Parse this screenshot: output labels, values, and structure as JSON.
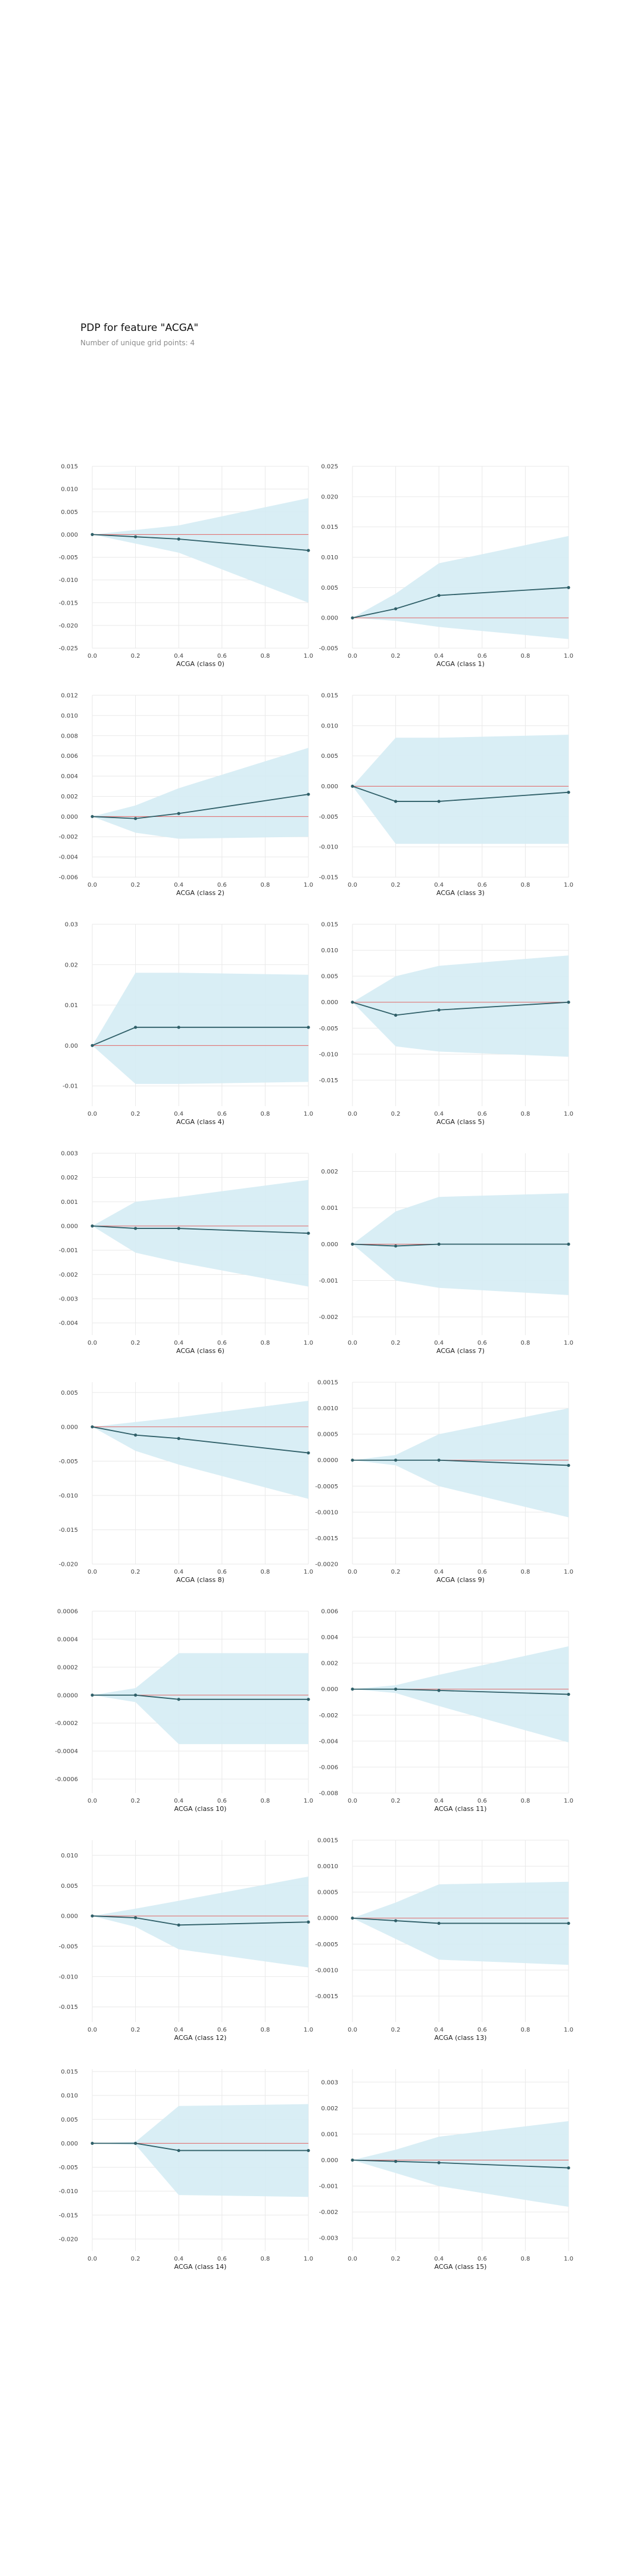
{
  "header": {
    "title": "PDP for feature \"ACGA\"",
    "subtitle": "Number of unique grid points: 4"
  },
  "colors": {
    "band": "#d5ecf4",
    "line": "#2f5f68",
    "baseline": "#e06666",
    "grid": "#e9e9e9",
    "tick_text": "#444444"
  },
  "chart_data": [
    {
      "type": "line",
      "xlabel": "ACGA (class 0)",
      "xlim": [
        0,
        1
      ],
      "ylim": [
        -0.025,
        0.015
      ],
      "xticks": [
        "0.0",
        "0.2",
        "0.4",
        "0.6",
        "0.8",
        "1.0"
      ],
      "yticks": [
        "0.015",
        "0.010",
        "0.005",
        "0.000",
        "-0.005",
        "-0.010",
        "-0.015",
        "-0.020",
        "-0.025"
      ],
      "ytick_values": [
        0.015,
        0.01,
        0.005,
        0.0,
        -0.005,
        -0.01,
        -0.015,
        -0.02,
        -0.025
      ],
      "x": [
        0,
        0.2,
        0.4,
        1.0
      ],
      "y": [
        0,
        -0.0005,
        -0.001,
        -0.0035
      ],
      "upper": [
        0,
        0.001,
        0.002,
        0.008
      ],
      "lower": [
        0,
        -0.002,
        -0.004,
        -0.015
      ]
    },
    {
      "type": "line",
      "xlabel": "ACGA (class 1)",
      "xlim": [
        0,
        1
      ],
      "ylim": [
        -0.005,
        0.025
      ],
      "xticks": [
        "0.0",
        "0.2",
        "0.4",
        "0.6",
        "0.8",
        "1.0"
      ],
      "yticks": [
        "0.025",
        "0.020",
        "0.015",
        "0.010",
        "0.005",
        "0.000",
        "-0.005"
      ],
      "ytick_values": [
        0.025,
        0.02,
        0.015,
        0.01,
        0.005,
        0.0,
        -0.005
      ],
      "x": [
        0,
        0.2,
        0.4,
        1.0
      ],
      "y": [
        0,
        0.0015,
        0.0037,
        0.005
      ],
      "upper": [
        0,
        0.004,
        0.009,
        0.0135
      ],
      "lower": [
        0,
        -0.0005,
        -0.0015,
        -0.0035
      ]
    },
    {
      "type": "line",
      "xlabel": "ACGA (class 2)",
      "xlim": [
        0,
        1
      ],
      "ylim": [
        -0.006,
        0.012
      ],
      "xticks": [
        "0.0",
        "0.2",
        "0.4",
        "0.6",
        "0.8",
        "1.0"
      ],
      "yticks": [
        "0.012",
        "0.010",
        "0.008",
        "0.006",
        "0.004",
        "0.002",
        "0.000",
        "-0.002",
        "-0.004",
        "-0.006"
      ],
      "ytick_values": [
        0.012,
        0.01,
        0.008,
        0.006,
        0.004,
        0.002,
        0.0,
        -0.002,
        -0.004,
        -0.006
      ],
      "x": [
        0,
        0.2,
        0.4,
        1.0
      ],
      "y": [
        0,
        -0.0002,
        0.0003,
        0.0022
      ],
      "upper": [
        0,
        0.0011,
        0.0028,
        0.0068
      ],
      "lower": [
        0,
        -0.0016,
        -0.0022,
        -0.002
      ]
    },
    {
      "type": "line",
      "xlabel": "ACGA (class 3)",
      "xlim": [
        0,
        1
      ],
      "ylim": [
        -0.015,
        0.015
      ],
      "xticks": [
        "0.0",
        "0.2",
        "0.4",
        "0.6",
        "0.8",
        "1.0"
      ],
      "yticks": [
        "0.015",
        "0.010",
        "0.005",
        "0.000",
        "-0.005",
        "-0.010",
        "-0.015"
      ],
      "ytick_values": [
        0.015,
        0.01,
        0.005,
        0.0,
        -0.005,
        -0.01,
        -0.015
      ],
      "x": [
        0,
        0.2,
        0.4,
        1.0
      ],
      "y": [
        0,
        -0.0025,
        -0.0025,
        -0.001
      ],
      "upper": [
        0,
        0.008,
        0.008,
        0.0085
      ],
      "lower": [
        0,
        -0.0095,
        -0.0095,
        -0.0095
      ]
    },
    {
      "type": "line",
      "xlabel": "ACGA (class 4)",
      "xlim": [
        0,
        1
      ],
      "ylim": [
        -0.015,
        0.03
      ],
      "xticks": [
        "0.0",
        "0.2",
        "0.4",
        "0.6",
        "0.8",
        "1.0"
      ],
      "yticks": [
        "0.03",
        "0.02",
        "0.01",
        "0.00",
        "-0.01"
      ],
      "ytick_values": [
        0.03,
        0.02,
        0.01,
        0.0,
        -0.01
      ],
      "x": [
        0,
        0.2,
        0.4,
        1.0
      ],
      "y": [
        0,
        0.0045,
        0.0045,
        0.0045
      ],
      "upper": [
        0,
        0.018,
        0.018,
        0.0175
      ],
      "lower": [
        0,
        -0.0095,
        -0.0095,
        -0.009
      ]
    },
    {
      "type": "line",
      "xlabel": "ACGA (class 5)",
      "xlim": [
        0,
        1
      ],
      "ylim": [
        -0.02,
        0.015
      ],
      "xticks": [
        "0.0",
        "0.2",
        "0.4",
        "0.6",
        "0.8",
        "1.0"
      ],
      "yticks": [
        "0.015",
        "0.010",
        "0.005",
        "0.000",
        "-0.005",
        "-0.010",
        "-0.015"
      ],
      "ytick_values": [
        0.015,
        0.01,
        0.005,
        0.0,
        -0.005,
        -0.01,
        -0.015
      ],
      "x": [
        0,
        0.2,
        0.4,
        1.0
      ],
      "y": [
        0,
        -0.0025,
        -0.0015,
        0
      ],
      "upper": [
        0,
        0.005,
        0.007,
        0.009
      ],
      "lower": [
        0,
        -0.0085,
        -0.0095,
        -0.0105
      ]
    },
    {
      "type": "line",
      "xlabel": "ACGA (class 6)",
      "xlim": [
        0,
        1
      ],
      "ylim": [
        -0.0045,
        0.003
      ],
      "xticks": [
        "0.0",
        "0.2",
        "0.4",
        "0.6",
        "0.8",
        "1.0"
      ],
      "yticks": [
        "0.003",
        "0.002",
        "0.001",
        "0.000",
        "-0.001",
        "-0.002",
        "-0.003",
        "-0.004"
      ],
      "ytick_values": [
        0.003,
        0.002,
        0.001,
        0.0,
        -0.001,
        -0.002,
        -0.003,
        -0.004
      ],
      "x": [
        0,
        0.2,
        0.4,
        1.0
      ],
      "y": [
        0,
        -0.0001,
        -0.0001,
        -0.0003
      ],
      "upper": [
        0,
        0.001,
        0.0012,
        0.0019
      ],
      "lower": [
        0,
        -0.0011,
        -0.0015,
        -0.0025
      ]
    },
    {
      "type": "line",
      "xlabel": "ACGA (class 7)",
      "xlim": [
        0,
        1
      ],
      "ylim": [
        -0.0025,
        0.0025
      ],
      "xticks": [
        "0.0",
        "0.2",
        "0.4",
        "0.6",
        "0.8",
        "1.0"
      ],
      "yticks": [
        "0.002",
        "0.001",
        "0.000",
        "-0.001",
        "-0.002"
      ],
      "ytick_values": [
        0.002,
        0.001,
        0.0,
        -0.001,
        -0.002
      ],
      "x": [
        0,
        0.2,
        0.4,
        1.0
      ],
      "y": [
        0,
        -5e-05,
        0,
        0
      ],
      "upper": [
        0,
        0.0009,
        0.0013,
        0.0014
      ],
      "lower": [
        0,
        -0.001,
        -0.0012,
        -0.0014
      ]
    },
    {
      "type": "line",
      "xlabel": "ACGA (class 8)",
      "xlim": [
        0,
        1
      ],
      "ylim": [
        -0.02,
        0.0065
      ],
      "xticks": [
        "0.0",
        "0.2",
        "0.4",
        "0.6",
        "0.8",
        "1.0"
      ],
      "yticks": [
        "0.005",
        "0.000",
        "-0.005",
        "-0.010",
        "-0.015",
        "-0.020"
      ],
      "ytick_values": [
        0.005,
        0.0,
        -0.005,
        -0.01,
        -0.015,
        -0.02
      ],
      "x": [
        0,
        0.2,
        0.4,
        1.0
      ],
      "y": [
        0,
        -0.0012,
        -0.0017,
        -0.0038
      ],
      "upper": [
        0,
        0.0007,
        0.0014,
        0.0038
      ],
      "lower": [
        0,
        -0.0035,
        -0.0055,
        -0.0105
      ]
    },
    {
      "type": "line",
      "xlabel": "ACGA (class 9)",
      "xlim": [
        0,
        1
      ],
      "ylim": [
        -0.002,
        0.0015
      ],
      "xticks": [
        "0.0",
        "0.2",
        "0.4",
        "0.6",
        "0.8",
        "1.0"
      ],
      "yticks": [
        "0.0015",
        "0.0010",
        "0.0005",
        "0.0000",
        "-0.0005",
        "-0.0010",
        "-0.0015",
        "-0.0020"
      ],
      "ytick_values": [
        0.0015,
        0.001,
        0.0005,
        0.0,
        -0.0005,
        -0.001,
        -0.0015,
        -0.002
      ],
      "x": [
        0,
        0.2,
        0.4,
        1.0
      ],
      "y": [
        0,
        0,
        0,
        -0.0001
      ],
      "upper": [
        0,
        0.0001,
        0.0005,
        0.001
      ],
      "lower": [
        0,
        -0.0001,
        -0.0005,
        -0.0011
      ]
    },
    {
      "type": "line",
      "xlabel": "ACGA (class 10)",
      "xlim": [
        0,
        1
      ],
      "ylim": [
        -0.0007,
        0.0006
      ],
      "xticks": [
        "0.0",
        "0.2",
        "0.4",
        "0.6",
        "0.8",
        "1.0"
      ],
      "yticks": [
        "0.0006",
        "0.0004",
        "0.0002",
        "0.0000",
        "-0.0002",
        "-0.0004",
        "-0.0006"
      ],
      "ytick_values": [
        0.0006,
        0.0004,
        0.0002,
        0.0,
        -0.0002,
        -0.0004,
        -0.0006
      ],
      "x": [
        0,
        0.2,
        0.4,
        1.0
      ],
      "y": [
        0,
        0,
        -3e-05,
        -3e-05
      ],
      "upper": [
        0,
        5e-05,
        0.0003,
        0.0003
      ],
      "lower": [
        0,
        -5e-05,
        -0.00035,
        -0.00035
      ]
    },
    {
      "type": "line",
      "xlabel": "ACGA (class 11)",
      "xlim": [
        0,
        1
      ],
      "ylim": [
        -0.008,
        0.006
      ],
      "xticks": [
        "0.0",
        "0.2",
        "0.4",
        "0.6",
        "0.8",
        "1.0"
      ],
      "yticks": [
        "0.006",
        "0.004",
        "0.002",
        "0.000",
        "-0.002",
        "-0.004",
        "-0.006",
        "-0.008"
      ],
      "ytick_values": [
        0.006,
        0.004,
        0.002,
        0.0,
        -0.002,
        -0.004,
        -0.006,
        -0.008
      ],
      "x": [
        0,
        0.2,
        0.4,
        1.0
      ],
      "y": [
        0,
        0,
        -0.0001,
        -0.0004
      ],
      "upper": [
        0,
        0.0003,
        0.0011,
        0.0033
      ],
      "lower": [
        0,
        -0.0003,
        -0.0013,
        -0.0041
      ]
    },
    {
      "type": "line",
      "xlabel": "ACGA (class 12)",
      "xlim": [
        0,
        1
      ],
      "ylim": [
        -0.0175,
        0.0125
      ],
      "xticks": [
        "0.0",
        "0.2",
        "0.4",
        "0.6",
        "0.8",
        "1.0"
      ],
      "yticks": [
        "0.010",
        "0.005",
        "0.000",
        "-0.005",
        "-0.010",
        "-0.015"
      ],
      "ytick_values": [
        0.01,
        0.005,
        0.0,
        -0.005,
        -0.01,
        -0.015
      ],
      "x": [
        0,
        0.2,
        0.4,
        1.0
      ],
      "y": [
        0,
        -0.0003,
        -0.0015,
        -0.001
      ],
      "upper": [
        0,
        0.0012,
        0.0025,
        0.0065
      ],
      "lower": [
        0,
        -0.0018,
        -0.0055,
        -0.0085
      ]
    },
    {
      "type": "line",
      "xlabel": "ACGA (class 13)",
      "xlim": [
        0,
        1
      ],
      "ylim": [
        -0.002,
        0.0015
      ],
      "xticks": [
        "0.0",
        "0.2",
        "0.4",
        "0.6",
        "0.8",
        "1.0"
      ],
      "yticks": [
        "0.0015",
        "0.0010",
        "0.0005",
        "0.0000",
        "-0.0005",
        "-0.0010",
        "-0.0015"
      ],
      "ytick_values": [
        0.0015,
        0.001,
        0.0005,
        0.0,
        -0.0005,
        -0.001,
        -0.0015
      ],
      "x": [
        0,
        0.2,
        0.4,
        1.0
      ],
      "y": [
        0,
        -5e-05,
        -0.0001,
        -0.0001
      ],
      "upper": [
        0,
        0.0003,
        0.00065,
        0.0007
      ],
      "lower": [
        0,
        -0.0004,
        -0.0008,
        -0.0009
      ]
    },
    {
      "type": "line",
      "xlabel": "ACGA (class 14)",
      "xlim": [
        0,
        1
      ],
      "ylim": [
        -0.0225,
        0.0155
      ],
      "xticks": [
        "0.0",
        "0.2",
        "0.4",
        "0.6",
        "0.8",
        "1.0"
      ],
      "yticks": [
        "0.015",
        "0.010",
        "0.005",
        "0.000",
        "-0.005",
        "-0.010",
        "-0.015",
        "-0.020"
      ],
      "ytick_values": [
        0.015,
        0.01,
        0.005,
        0.0,
        -0.005,
        -0.01,
        -0.015,
        -0.02
      ],
      "x": [
        0,
        0.2,
        0.4,
        1.0
      ],
      "y": [
        0,
        0,
        -0.0015,
        -0.0015
      ],
      "upper": [
        0,
        0.0003,
        0.0078,
        0.0082
      ],
      "lower": [
        0,
        -0.0003,
        -0.0108,
        -0.0112
      ]
    },
    {
      "type": "line",
      "xlabel": "ACGA (class 15)",
      "xlim": [
        0,
        1
      ],
      "ylim": [
        -0.0035,
        0.0035
      ],
      "xticks": [
        "0.0",
        "0.2",
        "0.4",
        "0.6",
        "0.8",
        "1.0"
      ],
      "yticks": [
        "0.003",
        "0.002",
        "0.001",
        "0.000",
        "-0.001",
        "-0.002",
        "-0.003"
      ],
      "ytick_values": [
        0.003,
        0.002,
        0.001,
        0.0,
        -0.001,
        -0.002,
        -0.003
      ],
      "x": [
        0,
        0.2,
        0.4,
        1.0
      ],
      "y": [
        0,
        -5e-05,
        -0.0001,
        -0.0003
      ],
      "upper": [
        0,
        0.0004,
        0.0009,
        0.0015
      ],
      "lower": [
        0,
        -0.0005,
        -0.001,
        -0.0018
      ]
    }
  ]
}
